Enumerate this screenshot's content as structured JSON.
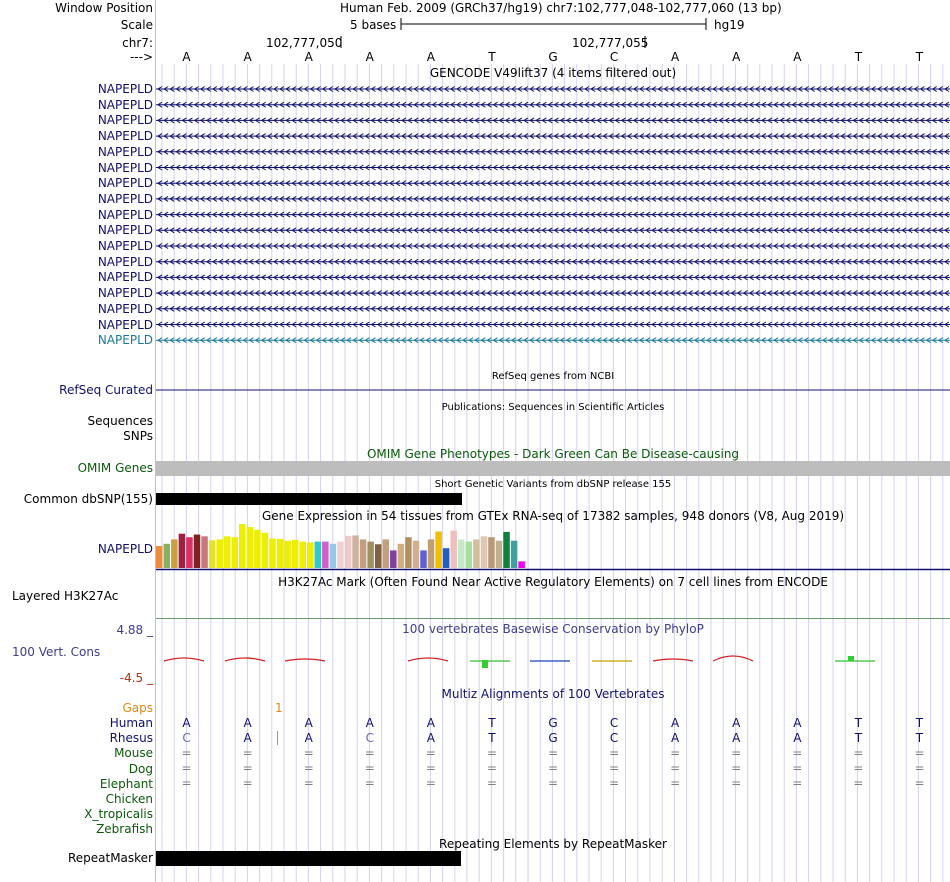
{
  "header": {
    "window_position_label": "Window Position",
    "window_position_value": "Human Feb. 2009 (GRCh37/hg19)   chr7:102,777,048-102,777,060 (13 bp)",
    "scale_label": "Scale",
    "scale_value": "5 bases",
    "assembly": "hg19",
    "chrom_label": "chr7:",
    "coord1": "102,777,050",
    "coord2": "102,777,055",
    "strand_label": "--->"
  },
  "bases": [
    "A",
    "A",
    "A",
    "A",
    "A",
    "T",
    "G",
    "C",
    "A",
    "A",
    "A",
    "T",
    "T"
  ],
  "gencode": {
    "title": "GENCODE V49lift37 (4 items filtered out)",
    "gene_labels": [
      "NAPEPLD",
      "NAPEPLD",
      "NAPEPLD",
      "NAPEPLD",
      "NAPEPLD",
      "NAPEPLD",
      "NAPEPLD",
      "NAPEPLD",
      "NAPEPLD",
      "NAPEPLD",
      "NAPEPLD",
      "NAPEPLD",
      "NAPEPLD",
      "NAPEPLD",
      "NAPEPLD",
      "NAPEPLD",
      "NAPEPLD"
    ]
  },
  "refseq": {
    "title": "RefSeq genes from NCBI",
    "label": "RefSeq Curated"
  },
  "publications": {
    "title": "Publications: Sequences in Scientific Articles",
    "label1": "Sequences",
    "label2": "SNPs"
  },
  "omim": {
    "title": "OMIM Gene Phenotypes - Dark Green Can Be Disease-causing",
    "label": "OMIM Genes"
  },
  "dbsnp": {
    "title": "Short Genetic Variants from dbSNP release 155",
    "label": "Common dbSNP(155)"
  },
  "gtex": {
    "title": "Gene Expression in 54 tissues from GTEx RNA-seq of 17382 samples, 948 donors (V8, Aug 2019)",
    "label": "NAPEPLD",
    "bars": [
      {
        "v": 0.5,
        "c": "#f08c40"
      },
      {
        "v": 0.55,
        "c": "#88b060"
      },
      {
        "v": 0.65,
        "c": "#c8a040"
      },
      {
        "v": 0.78,
        "c": "#a02040"
      },
      {
        "v": 0.7,
        "c": "#d83060"
      },
      {
        "v": 0.76,
        "c": "#802020"
      },
      {
        "v": 0.72,
        "c": "#c87878"
      },
      {
        "v": 0.63,
        "c": "#e8e030"
      },
      {
        "v": 0.65,
        "c": "#eeee00"
      },
      {
        "v": 0.72,
        "c": "#eeee00"
      },
      {
        "v": 0.7,
        "c": "#eeee00"
      },
      {
        "v": 1.0,
        "c": "#eeee00"
      },
      {
        "v": 0.93,
        "c": "#eeee00"
      },
      {
        "v": 0.87,
        "c": "#eeee00"
      },
      {
        "v": 0.8,
        "c": "#eeee00"
      },
      {
        "v": 0.67,
        "c": "#eeee00"
      },
      {
        "v": 0.66,
        "c": "#eeee00"
      },
      {
        "v": 0.62,
        "c": "#eeee00"
      },
      {
        "v": 0.64,
        "c": "#eeee00"
      },
      {
        "v": 0.6,
        "c": "#eeee00"
      },
      {
        "v": 0.58,
        "c": "#eeee00"
      },
      {
        "v": 0.6,
        "c": "#30c8c8"
      },
      {
        "v": 0.6,
        "c": "#d060d0"
      },
      {
        "v": 0.55,
        "c": "#98c8e8"
      },
      {
        "v": 0.6,
        "c": "#f0d0d0"
      },
      {
        "v": 0.73,
        "c": "#f0c8c8"
      },
      {
        "v": 0.74,
        "c": "#d0b0a0"
      },
      {
        "v": 0.65,
        "c": "#c0a080"
      },
      {
        "v": 0.6,
        "c": "#a09060"
      },
      {
        "v": 0.54,
        "c": "#806040"
      },
      {
        "v": 0.65,
        "c": "#c0a080"
      },
      {
        "v": 0.4,
        "c": "#8040a0"
      },
      {
        "v": 0.55,
        "c": "#d0b080"
      },
      {
        "v": 0.7,
        "c": "#b09060"
      },
      {
        "v": 0.62,
        "c": "#d0b090"
      },
      {
        "v": 0.4,
        "c": "#6060d0"
      },
      {
        "v": 0.65,
        "c": "#c0a070"
      },
      {
        "v": 0.83,
        "c": "#f0c000"
      },
      {
        "v": 0.45,
        "c": "#2060c0"
      },
      {
        "v": 0.85,
        "c": "#f0c0c0"
      },
      {
        "v": 0.65,
        "c": "#c8e8c8"
      },
      {
        "v": 0.6,
        "c": "#a8e0a0"
      },
      {
        "v": 0.65,
        "c": "#d0c0a0"
      },
      {
        "v": 0.72,
        "c": "#e0c8b0"
      },
      {
        "v": 0.7,
        "c": "#b89878"
      },
      {
        "v": 0.62,
        "c": "#c0b090"
      },
      {
        "v": 0.82,
        "c": "#108040"
      },
      {
        "v": 0.62,
        "c": "#40a0a0"
      },
      {
        "v": 0.15,
        "c": "#ee00ee"
      }
    ]
  },
  "h3k27ac": {
    "title": "H3K27Ac Mark (Often Found Near Active Regulatory Elements) on 7 cell lines from ENCODE",
    "label": "Layered H3K27Ac"
  },
  "conservation": {
    "title": "100 vertebrates Basewise Conservation by PhyloP",
    "label": "100 Vert. Cons",
    "ymax": "4.88 _",
    "ymin": "-4.5 _"
  },
  "multiz": {
    "title": "Multiz Alignments of 100 Vertebrates",
    "gaps_label": "Gaps",
    "gaps_count": "1",
    "species": [
      "Human",
      "Rhesus",
      "Mouse",
      "Dog",
      "Elephant",
      "Chicken",
      "X_tropicalis",
      "Zebrafish"
    ],
    "human": [
      "A",
      "A",
      "A",
      "A",
      "A",
      "T",
      "G",
      "C",
      "A",
      "A",
      "A",
      "T",
      "T"
    ],
    "rhesus": [
      "C",
      "A",
      "A",
      "C",
      "A",
      "T",
      "G",
      "C",
      "A",
      "A",
      "A",
      "T",
      "T"
    ],
    "eq_symbol": "="
  },
  "repeatmasker": {
    "title": "Repeating Elements by RepeatMasker",
    "label": "RepeatMasker"
  },
  "colors": {
    "navy": "#10106e",
    "grid": "#c8c8f0",
    "green": "#0a5a0a",
    "black": "#000000",
    "gray": "#bdbdbd"
  }
}
